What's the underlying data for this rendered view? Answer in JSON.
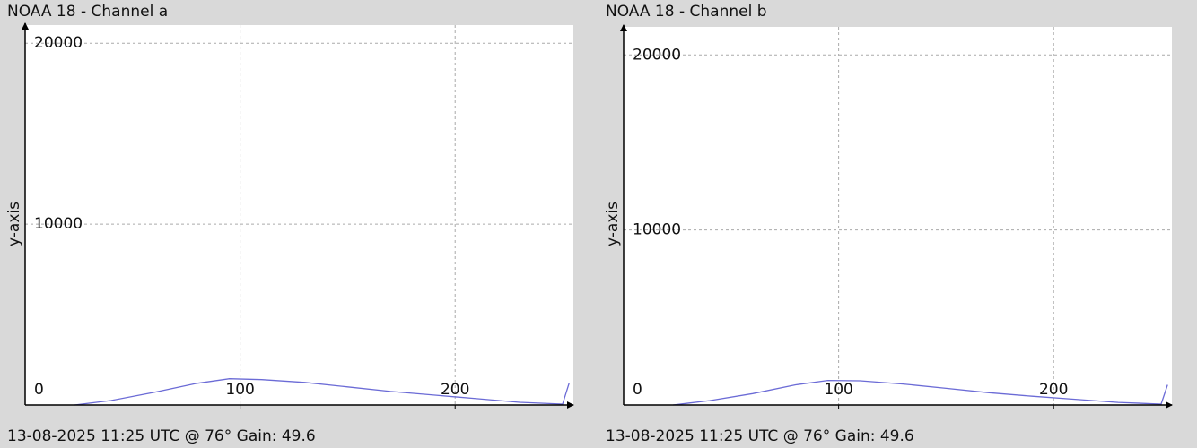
{
  "chart_data": [
    {
      "type": "line",
      "title": "NOAA 18 - Channel a",
      "footer": "13-08-2025 11:25 UTC @ 76° Gain: 49.6",
      "y_label": "y-axis",
      "x": [
        23,
        40,
        60,
        80,
        95,
        110,
        130,
        150,
        170,
        190,
        210,
        230,
        250,
        253
      ],
      "values": [
        0,
        250,
        700,
        1200,
        1450,
        1400,
        1250,
        1000,
        750,
        550,
        350,
        150,
        50,
        1200
      ],
      "color": "#6b6bd6",
      "xlim": [
        0,
        255
      ],
      "ylim": [
        0,
        21000
      ],
      "xticks": [
        100,
        200
      ],
      "yticks": [
        0,
        10000,
        20000
      ],
      "grid": true
    },
    {
      "type": "line",
      "title": "NOAA 18 - Channel b",
      "footer": "13-08-2025 11:25 UTC @ 76° Gain: 49.6",
      "y_label": "y-axis",
      "x": [
        23,
        40,
        60,
        80,
        95,
        110,
        130,
        150,
        170,
        190,
        210,
        230,
        250,
        253
      ],
      "values": [
        0,
        250,
        650,
        1150,
        1400,
        1380,
        1200,
        950,
        700,
        500,
        330,
        150,
        50,
        1150
      ],
      "color": "#6b6bd6",
      "xlim": [
        0,
        255
      ],
      "ylim": [
        0,
        21600
      ],
      "xticks": [
        100,
        200
      ],
      "yticks": [
        0,
        10000,
        20000
      ],
      "grid": true
    }
  ]
}
